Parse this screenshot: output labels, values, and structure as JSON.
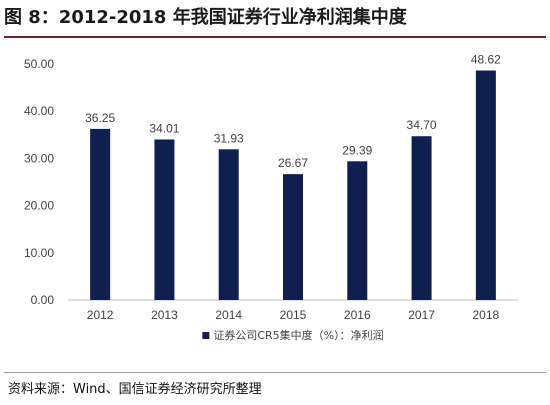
{
  "figure": {
    "title": "图 8：2012-2018 年我国证券行业净利润集中度",
    "source": "资料来源：Wind、国信证券经济研究所整理"
  },
  "chart_data": {
    "type": "bar",
    "categories": [
      "2012",
      "2013",
      "2014",
      "2015",
      "2016",
      "2017",
      "2018"
    ],
    "series": [
      {
        "name": "证券公司CR5集中度（%）：净利润",
        "values": [
          36.25,
          34.01,
          31.93,
          26.67,
          29.39,
          34.7,
          48.62
        ],
        "color": "#0f1f4f"
      }
    ],
    "value_labels": [
      "36.25",
      "34.01",
      "31.93",
      "26.67",
      "29.39",
      "34.70",
      "48.62"
    ],
    "ylim": [
      0,
      50
    ],
    "yticks": [
      0,
      10,
      20,
      30,
      40,
      50
    ],
    "ytick_labels": [
      "0.00",
      "10.00",
      "20.00",
      "30.00",
      "40.00",
      "50.00"
    ],
    "grid": false,
    "legend_position": "bottom-center",
    "axis_color": "#bfbfbf"
  }
}
